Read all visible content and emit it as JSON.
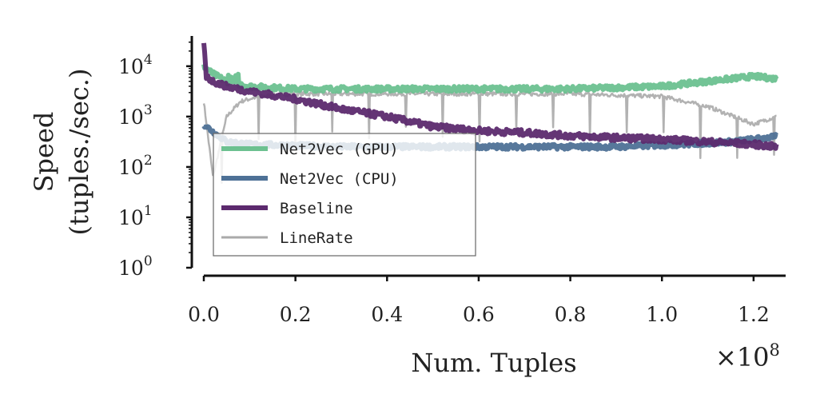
{
  "chart_data": {
    "type": "line",
    "xlabel": "Num. Tuples",
    "ylabel": [
      "Speed",
      "(tuples./sec.)"
    ],
    "x_scale_label": "×10",
    "x_scale_exp": "8",
    "xlim": [
      0,
      1.27
    ],
    "ylim_log10": [
      0,
      4.6
    ],
    "yscale": "log",
    "x_ticks": [
      0.0,
      0.2,
      0.4,
      0.6,
      0.8,
      1.0,
      1.2
    ],
    "x_tick_labels": [
      "0.0",
      "0.2",
      "0.4",
      "0.6",
      "0.8",
      "1.0",
      "1.2"
    ],
    "y_ticks_log10": [
      0,
      1,
      2,
      3,
      4
    ],
    "y_tick_base": "10",
    "y_tick_exps": [
      "0",
      "1",
      "2",
      "3",
      "4"
    ],
    "grid": false,
    "legend_position": "bottom-left",
    "series": [
      {
        "name": "Net2Vec (GPU)",
        "color": "#6cc190",
        "width": 6,
        "noise": 0.05,
        "points": [
          [
            0.0,
            4.0
          ],
          [
            0.02,
            3.85
          ],
          [
            0.05,
            3.7
          ],
          [
            0.1,
            3.6
          ],
          [
            0.2,
            3.55
          ],
          [
            0.4,
            3.55
          ],
          [
            0.6,
            3.55
          ],
          [
            0.8,
            3.55
          ],
          [
            1.0,
            3.6
          ],
          [
            1.1,
            3.7
          ],
          [
            1.2,
            3.8
          ],
          [
            1.25,
            3.75
          ]
        ]
      },
      {
        "name": "Net2Vec (CPU)",
        "color": "#4e7196",
        "width": 6,
        "noise": 0.05,
        "points": [
          [
            0.0,
            2.85
          ],
          [
            0.02,
            2.7
          ],
          [
            0.05,
            2.5
          ],
          [
            0.1,
            2.45
          ],
          [
            0.3,
            2.4
          ],
          [
            0.6,
            2.4
          ],
          [
            0.9,
            2.4
          ],
          [
            1.05,
            2.45
          ],
          [
            1.15,
            2.5
          ],
          [
            1.2,
            2.55
          ],
          [
            1.25,
            2.6
          ]
        ]
      },
      {
        "name": "Baseline",
        "color": "#5c2a6e",
        "width": 6,
        "noise": 0.06,
        "points": [
          [
            0.0,
            4.5
          ],
          [
            0.005,
            3.8
          ],
          [
            0.02,
            3.7
          ],
          [
            0.05,
            3.6
          ],
          [
            0.1,
            3.5
          ],
          [
            0.2,
            3.35
          ],
          [
            0.3,
            3.15
          ],
          [
            0.4,
            3.0
          ],
          [
            0.5,
            2.8
          ],
          [
            0.6,
            2.72
          ],
          [
            0.7,
            2.68
          ],
          [
            0.8,
            2.62
          ],
          [
            0.9,
            2.58
          ],
          [
            1.0,
            2.55
          ],
          [
            1.1,
            2.5
          ],
          [
            1.2,
            2.45
          ],
          [
            1.25,
            2.4
          ]
        ]
      },
      {
        "name": "LineRate",
        "color": "#aaaaaa",
        "width": 2.5,
        "noise": 0.04,
        "points": [
          [
            0.0,
            3.3
          ],
          [
            0.02,
            1.8
          ],
          [
            0.05,
            3.0
          ],
          [
            0.08,
            3.3
          ],
          [
            0.12,
            3.4
          ],
          [
            0.2,
            3.45
          ],
          [
            0.4,
            3.45
          ],
          [
            0.6,
            3.45
          ],
          [
            0.8,
            3.45
          ],
          [
            1.0,
            3.4
          ],
          [
            1.1,
            3.2
          ],
          [
            1.2,
            2.85
          ],
          [
            1.25,
            3.0
          ]
        ]
      }
    ]
  }
}
